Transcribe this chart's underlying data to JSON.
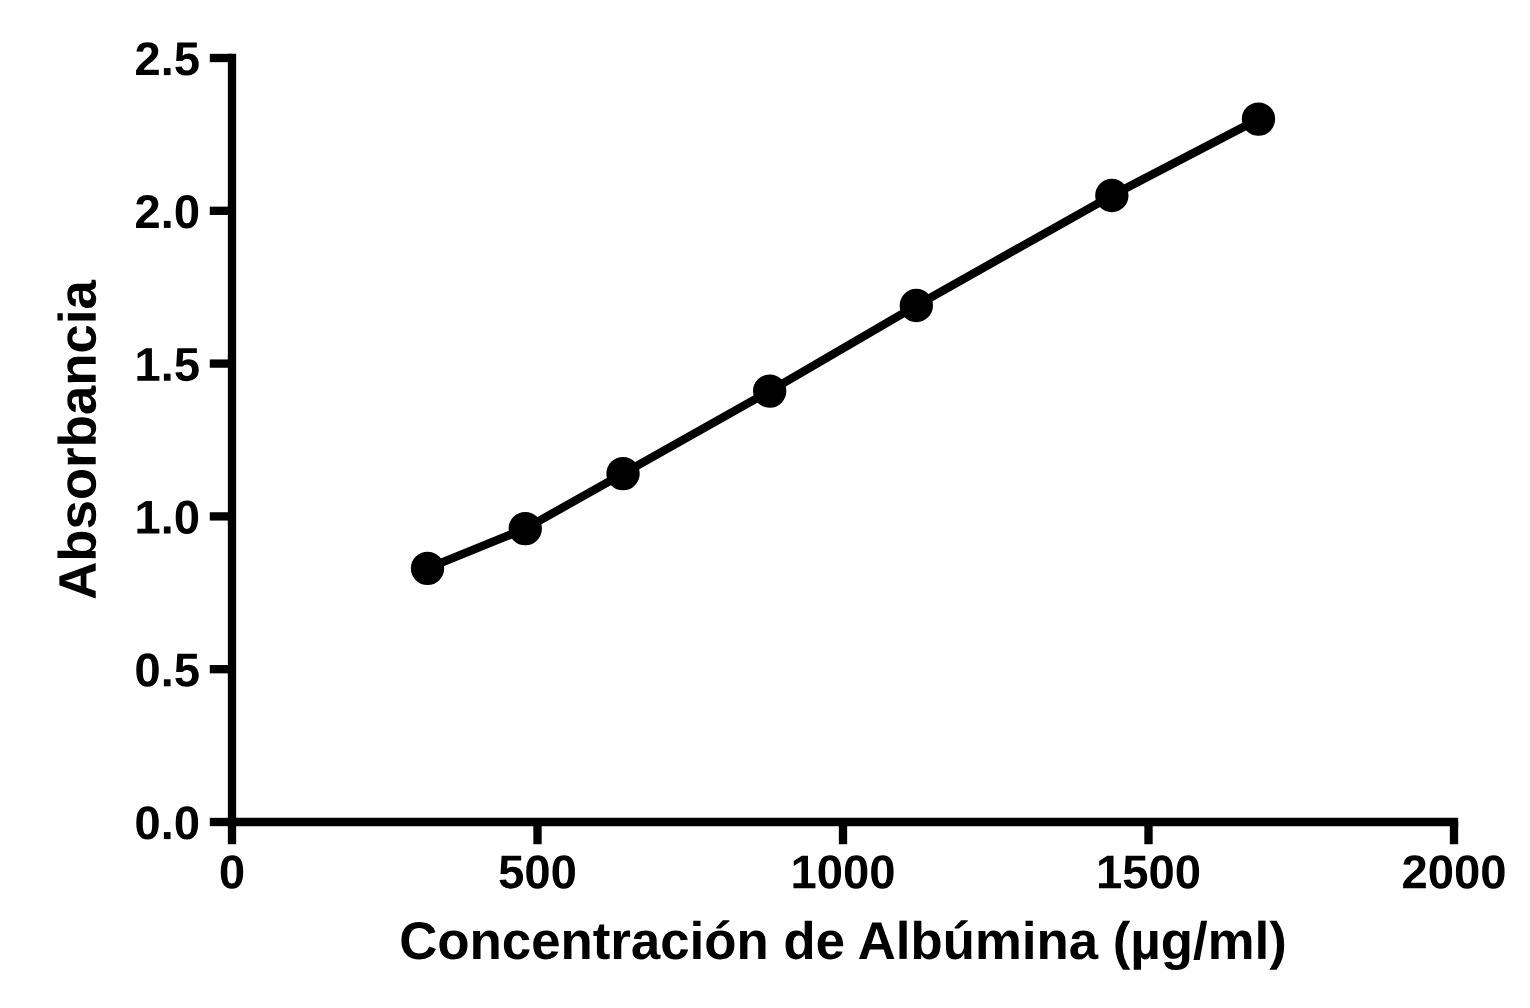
{
  "chart_data": {
    "type": "line",
    "xlabel": "Concentración de Albúmina (µg/ml)",
    "ylabel": "Absorbancia",
    "x": [
      320,
      480,
      640,
      880,
      1120,
      1440,
      1680
    ],
    "series": [
      {
        "color": "#000000",
        "values": [
          0.83,
          0.96,
          1.14,
          1.41,
          1.69,
          2.05,
          2.3
        ]
      }
    ],
    "xlim": [
      0,
      2000
    ],
    "xticks": [
      0,
      500,
      1000,
      1500,
      2000
    ],
    "ylim": [
      0,
      2.5
    ],
    "yticks": [
      {
        "value": 0,
        "label": "0.0"
      },
      {
        "value": 0.5,
        "label": "0.5"
      },
      {
        "value": 1,
        "label": "1.0"
      },
      {
        "value": 1.5,
        "label": "1.5"
      },
      {
        "value": 2,
        "label": "2.0"
      },
      {
        "value": 2.5,
        "label": "2.5"
      }
    ],
    "marker": "circle",
    "line_style": "solid",
    "grid": false,
    "legend": false
  }
}
